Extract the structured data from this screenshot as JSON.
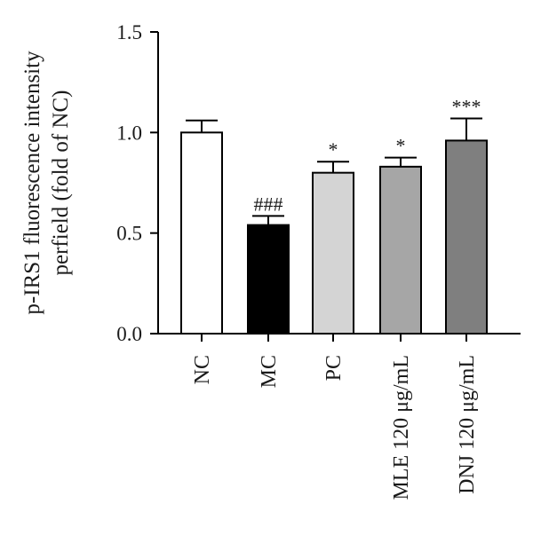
{
  "chart_data": {
    "type": "bar",
    "title": "",
    "ylabel_lines": [
      "p-IRS1 fluorescence intensity",
      "perfield (fold of NC)"
    ],
    "xlabel": "",
    "ylim": [
      0.0,
      1.5
    ],
    "yticks": [
      0.0,
      0.5,
      1.0,
      1.5
    ],
    "ytick_labels": [
      "0.0",
      "0.5",
      "1.0",
      "1.5"
    ],
    "grid": false,
    "categories": [
      "NC",
      "MC",
      "PC",
      "MLE 120 μg/mL",
      "DNJ 120 μg/mL"
    ],
    "values": [
      1.0,
      0.54,
      0.8,
      0.83,
      0.96
    ],
    "errors": [
      0.06,
      0.045,
      0.055,
      0.045,
      0.11
    ],
    "annotations": [
      "",
      "###",
      "*",
      "*",
      "***"
    ],
    "bar_colors": [
      "#ffffff",
      "#000000",
      "#d4d4d4",
      "#a6a6a6",
      "#7f7f7f"
    ]
  }
}
